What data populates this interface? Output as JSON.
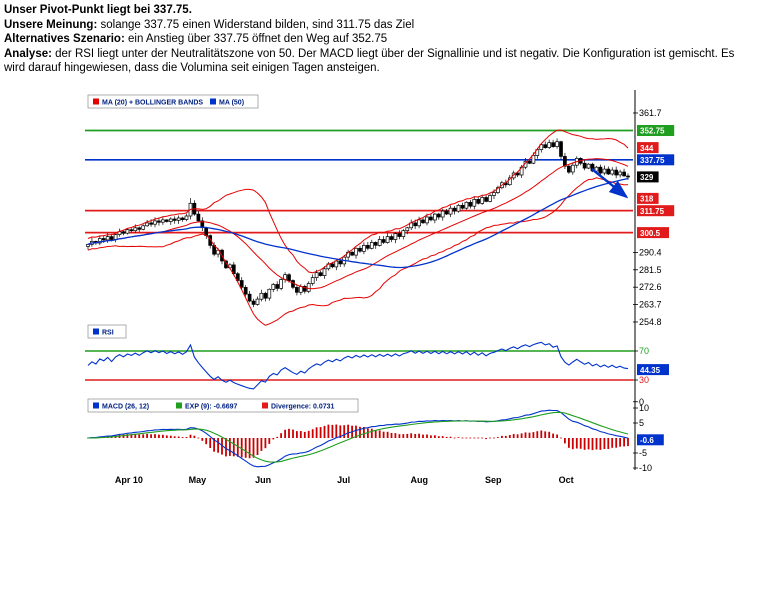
{
  "analysis": {
    "pivot": "Unser Pivot-Punkt liegt bei 337.75.",
    "meinung_label": "Unsere Meinung:",
    "meinung_text": " solange 337.75 einen Widerstand bilden, sind 311.75 das Ziel",
    "szenario_label": "Alternatives Szenario:",
    "szenario_text": " ein Anstieg über 337.75 öffnet den Weg auf 352.75",
    "analyse_label": "Analyse:",
    "analyse_text": " der RSI liegt unter der Neutralitätszone von 50. Der MACD liegt über der Signallinie und ist negativ. Die Konfiguration ist gemischt. Es wird darauf hingewiesen, dass die Volumina seit einigen Tagen ansteigen."
  },
  "chart_data": {
    "type": "candlestick",
    "colors": {
      "green": "#1f9e1f",
      "red": "#e11b1b",
      "blue": "#0033cc",
      "black": "#000000",
      "bollinger": "#e60000",
      "histogram": "#cc0000",
      "legend_text": "#002080",
      "background": "#ffffff"
    },
    "x_axis": {
      "labels": [
        {
          "label": "Apr 10",
          "pos": 0.08
        },
        {
          "label": "May",
          "pos": 0.205
        },
        {
          "label": "Jun",
          "pos": 0.325
        },
        {
          "label": "Jul",
          "pos": 0.472
        },
        {
          "label": "Aug",
          "pos": 0.61
        },
        {
          "label": "Sep",
          "pos": 0.745
        },
        {
          "label": "Oct",
          "pos": 0.878
        }
      ]
    },
    "price_panel": {
      "legend": [
        {
          "label": "MA (20) + BOLLINGER BANDS",
          "color": "#e60000"
        },
        {
          "label": "MA (50)",
          "color": "#0033cc"
        }
      ],
      "ylim": [
        254.8,
        361.7
      ],
      "axis_ticks": [
        361.7,
        290.4,
        281.5,
        272.6,
        263.7,
        254.8
      ],
      "levels": [
        {
          "label": "352.75",
          "value": 352.75,
          "color": "#1f9e1f",
          "line": true
        },
        {
          "label": "344",
          "value": 344,
          "color": "#e11b1b",
          "line": false
        },
        {
          "label": "337.75",
          "value": 337.75,
          "color": "#0033cc",
          "line": true
        },
        {
          "label": "329",
          "value": 329,
          "color": "#000000",
          "line": false
        },
        {
          "label": "318",
          "value": 318,
          "color": "#e11b1b",
          "line": false
        },
        {
          "label": "311.75",
          "value": 311.75,
          "color": "#e11b1b",
          "line": true
        },
        {
          "label": "300.5",
          "value": 300.5,
          "color": "#e11b1b",
          "line": true
        }
      ],
      "spike": {
        "index": 26,
        "high": 318.2
      },
      "arrow": {
        "from_pos": 0.925,
        "from_price": 333,
        "to_pos": 0.988,
        "to_price": 318.8,
        "color": "#0033cc"
      },
      "close": [
        294.5,
        296.0,
        295.2,
        297.5,
        296.8,
        298.5,
        297.0,
        299.5,
        301.0,
        300.2,
        302.0,
        301.5,
        303.0,
        302.2,
        304.0,
        305.5,
        304.8,
        306.5,
        305.8,
        307.0,
        306.2,
        307.5,
        306.8,
        308.0,
        307.2,
        309.0,
        315.5,
        310.0,
        306.5,
        303.0,
        299.0,
        294.0,
        289.5,
        291.5,
        286.0,
        282.5,
        284.0,
        279.5,
        276.0,
        272.5,
        269.0,
        265.5,
        263.8,
        266.5,
        269.5,
        267.0,
        271.5,
        274.0,
        272.0,
        276.5,
        279.0,
        276.0,
        272.5,
        270.0,
        273.0,
        270.5,
        274.5,
        277.5,
        280.0,
        278.5,
        282.0,
        284.5,
        283.0,
        286.0,
        284.5,
        288.0,
        290.5,
        289.0,
        292.5,
        291.0,
        294.0,
        292.5,
        295.5,
        294.0,
        297.0,
        295.5,
        298.5,
        297.0,
        300.0,
        298.5,
        301.5,
        303.0,
        305.5,
        304.0,
        307.0,
        305.5,
        308.5,
        307.0,
        310.0,
        308.5,
        311.5,
        310.0,
        313.0,
        311.5,
        314.5,
        313.0,
        316.0,
        314.0,
        317.5,
        315.5,
        318.5,
        316.5,
        319.5,
        321.0,
        323.5,
        326.0,
        325.0,
        328.5,
        331.0,
        330.0,
        334.0,
        337.0,
        336.0,
        340.0,
        343.0,
        345.5,
        344.0,
        346.5,
        344.5,
        347.0,
        339.5,
        334.5,
        331.5,
        335.0,
        338.5,
        336.0,
        333.5,
        335.5,
        332.0,
        334.0,
        331.0,
        333.0,
        330.5,
        332.5,
        330.0,
        331.5,
        329.5,
        329.0
      ],
      "indicators": {
        "ma_fast": 20,
        "ma_slow": 50,
        "bollinger_k": 2
      }
    },
    "rsi_panel": {
      "legend": [
        {
          "label": "RSI",
          "color": "#0033cc"
        }
      ],
      "period": 14,
      "upper": 70,
      "lower": 30,
      "upper_label": "70",
      "lower_label": "30",
      "zero_label": "0",
      "current_value": 44.35,
      "current_label": "44.35"
    },
    "macd_panel": {
      "legend": [
        {
          "label": "MACD (26, 12)",
          "color": "#0033cc"
        },
        {
          "label": "EXP (9): -0.6697",
          "color": "#1f9e1f"
        },
        {
          "label": "Divergence: 0.0731",
          "color": "#e11b1b"
        }
      ],
      "params": {
        "slow": 26,
        "fast": 12,
        "signal": 9
      },
      "ticks": [
        10,
        5,
        -5,
        -10
      ],
      "current_value": -0.6,
      "current_label": "-0.6"
    }
  }
}
